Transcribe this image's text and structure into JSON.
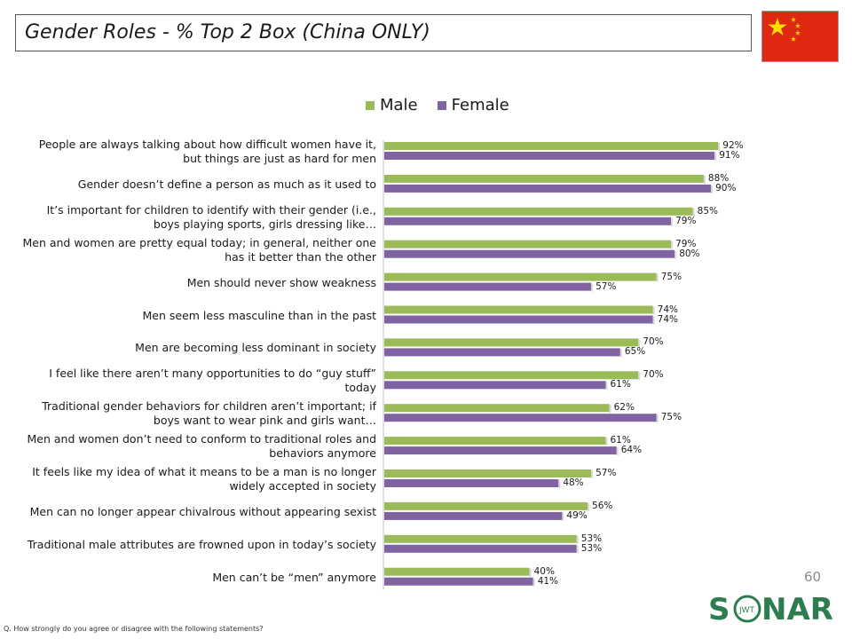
{
  "title": "Gender Roles - % Top 2 Box (China ONLY)",
  "page_number": "60",
  "footnote": "Q. How strongly do you agree or disagree with the following statements?",
  "logo": {
    "text": "SONAR",
    "sub": "JWT"
  },
  "colors": {
    "male": "#9bbb59",
    "female": "#8064a2",
    "flag_red": "#de2910",
    "flag_star": "#ffde00",
    "logo_green": "#2e7d4f"
  },
  "chart_data": {
    "type": "bar",
    "orientation": "horizontal",
    "categories": [
      "People are always talking about how difficult women have it, but things are just as hard for men",
      "Gender doesn’t define a person as much as it used to",
      "It’s important for children to identify with their gender (i.e., boys playing sports, girls dressing like…",
      "Men and women are pretty equal today; in general, neither one has it better than the other",
      "Men should never show weakness",
      "Men seem less masculine than in the past",
      "Men are becoming less dominant in society",
      "I feel like there aren’t many opportunities to do “guy stuff” today",
      "Traditional gender behaviors for children aren’t important; if boys want to wear pink and girls want…",
      "Men and women don’t need to conform to traditional roles and behaviors anymore",
      "It feels like my idea of what it means to be a man is no longer widely accepted in society",
      "Men can no longer appear chivalrous without appearing sexist",
      "Traditional male attributes are frowned upon in today’s society",
      "Men can’t be “men” anymore"
    ],
    "series": [
      {
        "name": "Male",
        "values": [
          92,
          88,
          85,
          79,
          75,
          74,
          70,
          70,
          62,
          61,
          57,
          56,
          53,
          40
        ]
      },
      {
        "name": "Female",
        "values": [
          91,
          90,
          79,
          80,
          57,
          74,
          65,
          61,
          75,
          64,
          48,
          49,
          53,
          41
        ]
      }
    ],
    "value_suffix": "%",
    "xlim": [
      0,
      100
    ],
    "legend_position": "top",
    "grid": false
  }
}
